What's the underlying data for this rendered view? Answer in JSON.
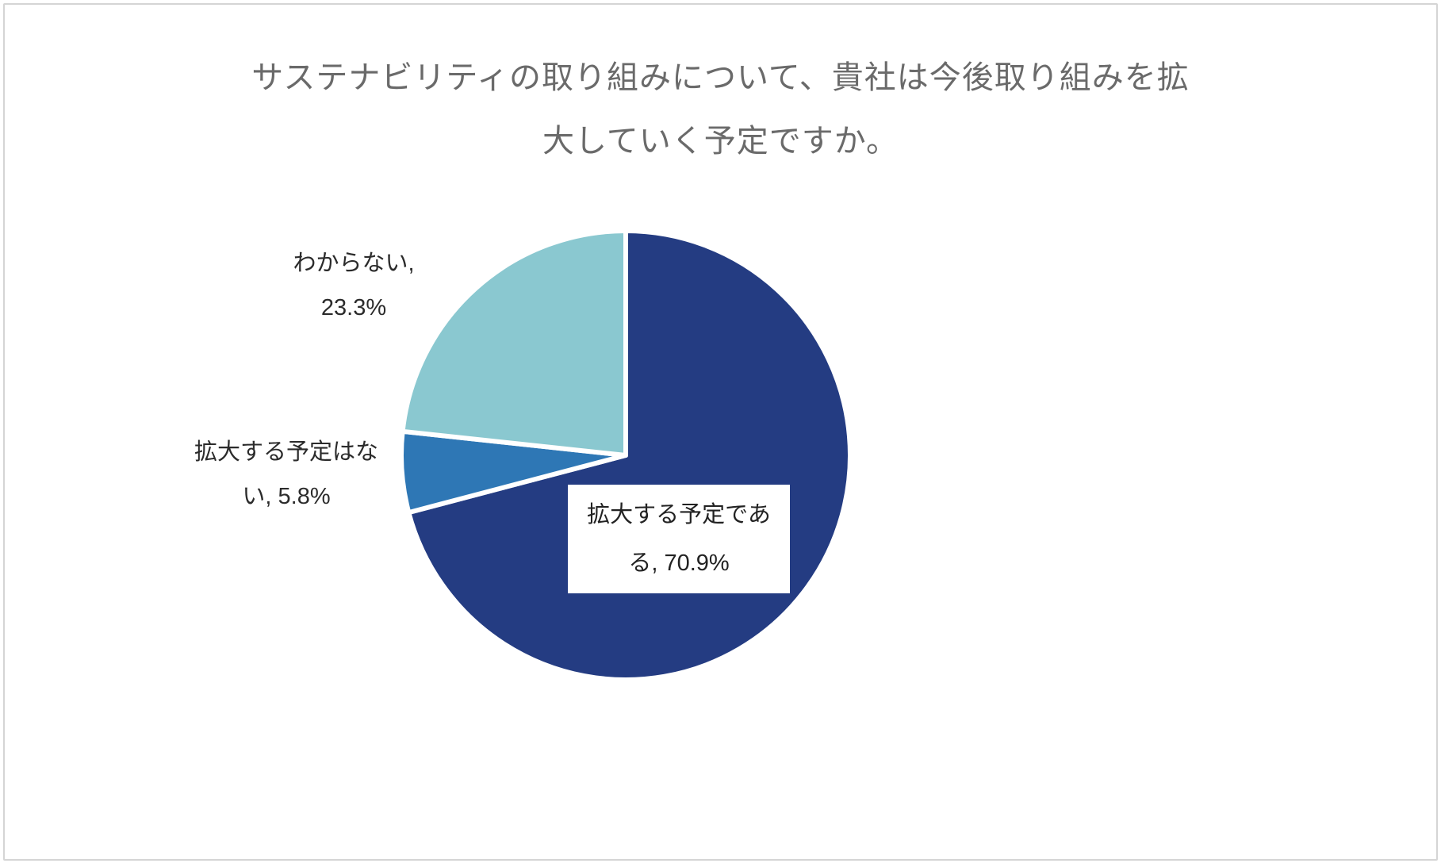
{
  "title": {
    "line1": "サステナビリティの取り組みについて、貴社は今後取り組みを拡",
    "line2": "大していく予定ですか。",
    "full_text": "サステナビリティの取り組みについて、貴社は今後取り組みを拡大していく予定ですか。",
    "color": "#6a6a6a"
  },
  "chart_data": {
    "type": "pie",
    "title": "サステナビリティの取り組みについて、貴社は今後取り組みを拡大していく予定ですか。",
    "start_angle_deg": 0,
    "direction": "clockwise",
    "legend": "none",
    "stroke_color": "#ffffff",
    "slices": [
      {
        "label": "拡大する予定である",
        "value": 70.9,
        "color": "#243c82",
        "label_placement": "inside-white-box"
      },
      {
        "label": "拡大する予定はない",
        "value": 5.8,
        "color": "#2e77b5",
        "label_placement": "outside-left"
      },
      {
        "label": "わからない",
        "value": 23.3,
        "color": "#8ac8d0",
        "label_placement": "outside-upper-left"
      }
    ]
  },
  "labels": {
    "dont_know": {
      "line1": "わからない,",
      "line2": "23.3%"
    },
    "no_plan": {
      "line1": "拡大する予定はな",
      "line2": "い, 5.8%"
    },
    "plan": {
      "line1": "拡大する予定であ",
      "line2": "る, 70.9%"
    }
  }
}
